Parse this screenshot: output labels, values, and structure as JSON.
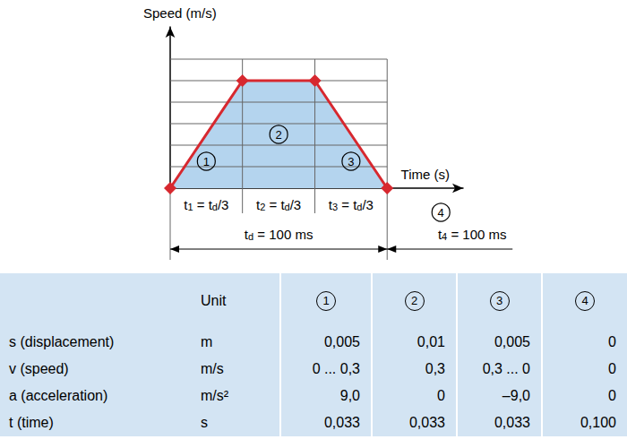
{
  "chart_data": {
    "type": "line",
    "x_label": "Time (s)",
    "y_label": "Speed (m/s)",
    "x": [
      0,
      0.0333,
      0.0667,
      0.1
    ],
    "values": [
      0,
      0.3,
      0.3,
      0
    ],
    "xlim": [
      0,
      0.135
    ],
    "ylim": [
      0,
      0.45
    ],
    "xticks": [
      0,
      0.0333,
      0.0667,
      0.1
    ],
    "yticks": [
      0,
      0.06,
      0.12,
      0.18,
      0.24,
      0.3,
      0.36
    ],
    "color": "#d7282f",
    "marker": "diamond",
    "grid": true,
    "tick_labels": false,
    "segments": [
      "1",
      "2",
      "3"
    ],
    "segment_labels": [
      [
        "t",
        "1",
        " = t",
        "d",
        "/3"
      ],
      [
        "t",
        "2",
        " = t",
        "d",
        "/3"
      ],
      [
        "t",
        "3",
        " = t",
        "d",
        "/3"
      ]
    ],
    "duration_label": [
      "t",
      "d",
      " = 100 ms"
    ],
    "pause": {
      "number": "4",
      "label": [
        "t",
        "4",
        " = 100 ms"
      ]
    }
  },
  "table": {
    "unit_header": "Unit",
    "columns": [
      "1",
      "2",
      "3",
      "4"
    ],
    "rows": [
      [
        "s (displacement)",
        "m",
        "0,005",
        "0,01",
        "0,005",
        "0"
      ],
      [
        "v (speed)",
        "m/s",
        "0 ... 0,3",
        "0,3",
        "0,3 ... 0",
        "0"
      ],
      [
        "a (acceleration)",
        "m/s²",
        "9,0",
        "0",
        "–9,0",
        "0"
      ],
      [
        "t (time)",
        "s",
        "0,033",
        "0,033",
        "0,033",
        "0,100"
      ]
    ]
  }
}
